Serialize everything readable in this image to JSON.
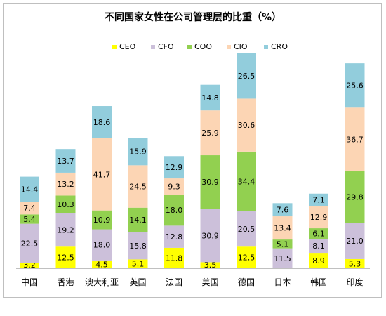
{
  "chart_data": {
    "type": "bar",
    "stacked": true,
    "title": "不同国家女性在公司管理层的比重（%）",
    "categories": [
      "中国",
      "香港",
      "澳大利亚",
      "英国",
      "法国",
      "美国",
      "德国",
      "日本",
      "韩国",
      "印度"
    ],
    "series": [
      {
        "name": "CEO",
        "color": "#ffff00",
        "values": [
          3.2,
          12.5,
          4.5,
          5.1,
          11.8,
          3.5,
          12.5,
          0,
          8.9,
          5.3
        ]
      },
      {
        "name": "CFO",
        "color": "#ccc0da",
        "values": [
          22.5,
          19.2,
          18.0,
          15.8,
          12.8,
          30.9,
          20.5,
          11.5,
          8.1,
          21.0
        ]
      },
      {
        "name": "COO",
        "color": "#92d050",
        "values": [
          5.4,
          10.3,
          10.9,
          14.1,
          18.0,
          30.9,
          34.4,
          5.1,
          6.1,
          29.8
        ]
      },
      {
        "name": "CIO",
        "color": "#fcd5b4",
        "values": [
          7.4,
          13.2,
          41.7,
          24.5,
          9.3,
          25.9,
          30.6,
          13.4,
          12.9,
          36.7
        ]
      },
      {
        "name": "CRO",
        "color": "#92cddc",
        "values": [
          14.4,
          13.7,
          18.6,
          15.9,
          12.9,
          14.8,
          26.5,
          7.6,
          7.1,
          25.6
        ]
      }
    ],
    "value_labels": [
      [
        "3.2",
        "22.5",
        "5.4",
        "7.4",
        "14.4"
      ],
      [
        "12.5",
        "19.2",
        "10.3",
        "13.2",
        "13.7"
      ],
      [
        "4.5",
        "18.0",
        "10.9",
        "41.7",
        "18.6"
      ],
      [
        "5.1",
        "15.8",
        "14.1",
        "24.5",
        "15.9"
      ],
      [
        "11.8",
        "12.8",
        "18.0",
        "9.3",
        "12.9"
      ],
      [
        "3.5",
        "30.9",
        "30.9",
        "25.9",
        "14.8"
      ],
      [
        "12.5",
        "20.5",
        "34.4",
        "30.6",
        "26.5"
      ],
      [
        "",
        "11.5",
        "5.1",
        "13.4",
        "7.6"
      ],
      [
        "8.9",
        "8.1",
        "6.1",
        "12.9",
        "7.1"
      ],
      [
        "5.3",
        "21.0",
        "29.8",
        "36.7",
        "25.6"
      ]
    ],
    "legend_position": "top",
    "grid": false
  }
}
